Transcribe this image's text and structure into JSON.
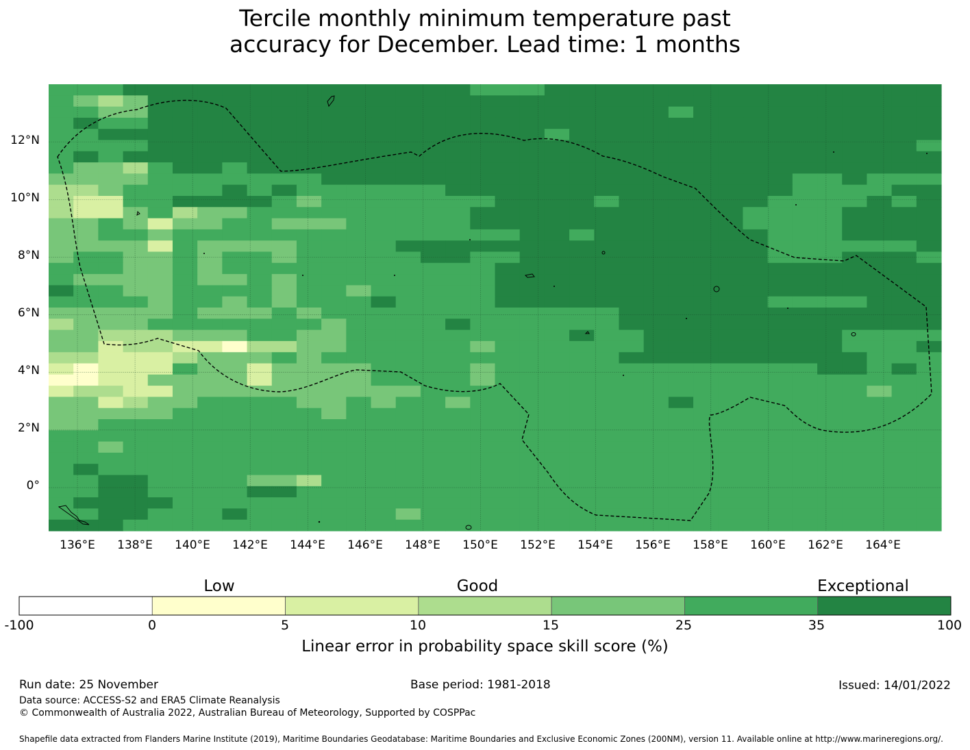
{
  "title": {
    "line1": "Tercile monthly minimum temperature past",
    "line2": "accuracy for December. Lead time: 1 months"
  },
  "map": {
    "lon_range": [
      135,
      166
    ],
    "lat_range": [
      -1.5,
      14
    ],
    "lat_ticks": [
      "12°N",
      "10°N",
      "8°N",
      "6°N",
      "4°N",
      "2°N",
      "0°"
    ],
    "lon_ticks": [
      "136°E",
      "138°E",
      "140°E",
      "142°E",
      "144°E",
      "146°E",
      "148°E",
      "150°E",
      "152°E",
      "154°E",
      "156°E",
      "158°E",
      "160°E",
      "162°E",
      "164°E"
    ],
    "gridlines": true,
    "eez_boundary": "dashed black line",
    "cell_levels_note": "0=<0, 1=0-5, 2=5-10, 3=10-15, 4=15-25, 5=25-35, 6=35-100",
    "grid_rows_north_to_south": [
      "555666666666666665556666666666666666",
      "543466666666666666666666666666666666",
      "554466666666666666666666656666666666",
      "565566666666666666666666666666666666",
      "556666666666666666665666666666666666",
      "555566666666666666666666666666666665",
      "565666666666666666666666666666666666",
      "544356656666666666666666666666666666",
      "444455555556666666666666666666556555",
      "334555565655555566666666666666555566",
      "322556666545555555666656666665555656",
      "322453445555555556666666666655556666",
      "445424455444555556666666666655556666",
      "445545555555555555566566666665556666",
      "444425444455556666666666666665555556",
      "455445455455555665566666666665556665",
      "555445455555555555666666666666666666",
      "544445445455555555666666666666666666",
      "655445555455455555666666666666666666",
      "555545545455565555666666666665555666",
      "444445444545555555555556666666666666",
      "344455555554555565555556666666666666",
      "443334445544555555555655666666665555",
      "442332213344555554555555666666665556",
      "332223444545555555555556666666666555",
      "212225442444455554555555555555566565",
      "112244442444455554555555555555555555",
      "233224444444444555555555555555555455",
      "442344555544545545555555565555555555",
      "444445555554555555555555555555555555",
      "445555555555555555555555555555555555",
      "555555555555555555555555555555555555",
      "554555555555555555555555555555555555",
      "555555555555555555555555555555555555",
      "565555555555555555555555555555555555",
      "556655554435555555555555555555555555",
      "556655556655555555555555555555555555",
      "566665555555555555555555555555555555",
      "556655565555554555555555555555555555",
      "666555555555555555555555555555555555"
    ]
  },
  "colorbar": {
    "categories": [
      "Low",
      "Good",
      "Exceptional"
    ],
    "ticks": [
      "-100",
      "0",
      "5",
      "10",
      "15",
      "25",
      "35",
      "100"
    ],
    "colors": [
      "#ffffff",
      "#ffffcc",
      "#d9f0a3",
      "#addd8e",
      "#78c679",
      "#41ab5d",
      "#238443"
    ],
    "label": "Linear error in probability space skill score (%)"
  },
  "footer": {
    "run_date": "Run date: 25 November",
    "base_period": "Base period: 1981-2018",
    "issued": "Issued: 14/01/2022",
    "data_source": "Data source: ACCESS-S2 and ERA5 Climate Reanalysis",
    "copyright": "© Commonwealth of Australia 2022, Australian Bureau of Meteorology, Supported by COSPPac",
    "shapefile": "Shapefile data extracted from Flanders Marine Institute (2019), Maritime Boundaries Geodatabase: Maritime Boundaries and Exclusive Economic Zones (200NM), version 11. Available online at http://www.marineregions.org/."
  }
}
